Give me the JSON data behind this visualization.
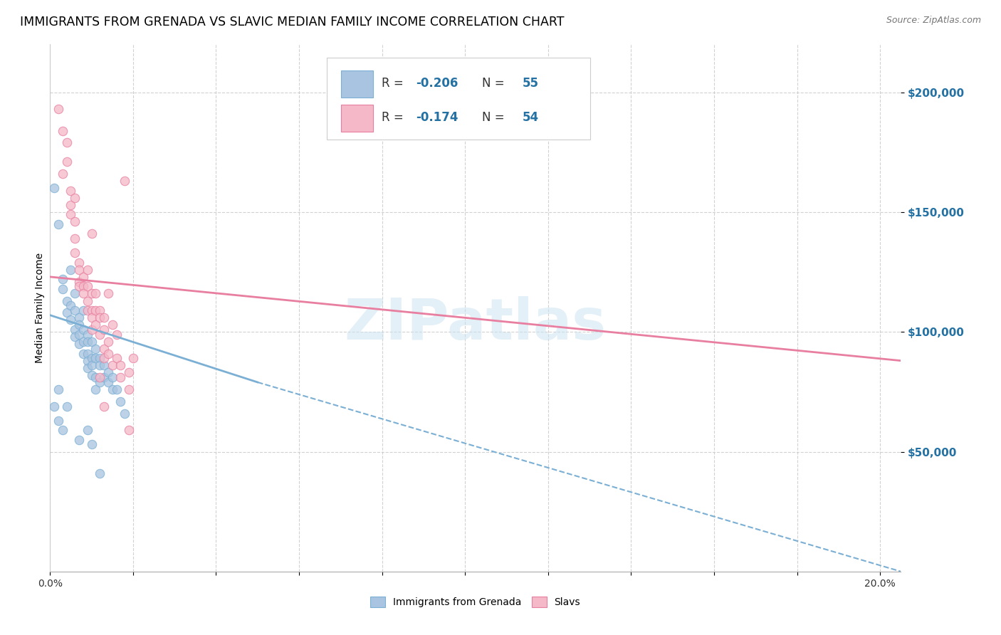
{
  "title": "IMMIGRANTS FROM GRENADA VS SLAVIC MEDIAN FAMILY INCOME CORRELATION CHART",
  "source": "Source: ZipAtlas.com",
  "ylabel": "Median Family Income",
  "ytick_values": [
    50000,
    100000,
    150000,
    200000
  ],
  "ylim": [
    0,
    220000
  ],
  "xlim": [
    0.0,
    0.205
  ],
  "watermark_text": "ZIPatlas",
  "grenada_color": "#a8c4e0",
  "grenada_edge": "#7bafd4",
  "slavs_color": "#f4b8c8",
  "slavs_edge": "#e87fa0",
  "bg_color": "#ffffff",
  "grid_color": "#cccccc",
  "scatter_size": 80,
  "scatter_alpha": 0.75,
  "grenada_line_solid": {
    "x0": 0.0,
    "y0": 107000,
    "x1": 0.05,
    "y1": 79000
  },
  "grenada_line_dashed": {
    "x0": 0.05,
    "y0": 79000,
    "x1": 0.205,
    "y1": 0
  },
  "slavs_line": {
    "x0": 0.0,
    "y0": 123000,
    "x1": 0.205,
    "y1": 88000
  },
  "grenada_scatter": [
    [
      0.001,
      160000
    ],
    [
      0.002,
      145000
    ],
    [
      0.003,
      122000
    ],
    [
      0.003,
      118000
    ],
    [
      0.004,
      113000
    ],
    [
      0.004,
      108000
    ],
    [
      0.005,
      126000
    ],
    [
      0.005,
      111000
    ],
    [
      0.005,
      105000
    ],
    [
      0.006,
      116000
    ],
    [
      0.006,
      109000
    ],
    [
      0.006,
      101000
    ],
    [
      0.006,
      98000
    ],
    [
      0.007,
      106000
    ],
    [
      0.007,
      103000
    ],
    [
      0.007,
      99000
    ],
    [
      0.007,
      95000
    ],
    [
      0.008,
      109000
    ],
    [
      0.008,
      101000
    ],
    [
      0.008,
      96000
    ],
    [
      0.008,
      91000
    ],
    [
      0.009,
      99000
    ],
    [
      0.009,
      96000
    ],
    [
      0.009,
      91000
    ],
    [
      0.009,
      88000
    ],
    [
      0.009,
      85000
    ],
    [
      0.01,
      96000
    ],
    [
      0.01,
      89000
    ],
    [
      0.01,
      86000
    ],
    [
      0.01,
      82000
    ],
    [
      0.011,
      93000
    ],
    [
      0.011,
      89000
    ],
    [
      0.011,
      81000
    ],
    [
      0.011,
      76000
    ],
    [
      0.012,
      89000
    ],
    [
      0.012,
      86000
    ],
    [
      0.012,
      79000
    ],
    [
      0.013,
      86000
    ],
    [
      0.013,
      81000
    ],
    [
      0.014,
      83000
    ],
    [
      0.014,
      79000
    ],
    [
      0.015,
      81000
    ],
    [
      0.015,
      76000
    ],
    [
      0.016,
      76000
    ],
    [
      0.017,
      71000
    ],
    [
      0.018,
      66000
    ],
    [
      0.001,
      69000
    ],
    [
      0.002,
      63000
    ],
    [
      0.003,
      59000
    ],
    [
      0.007,
      55000
    ],
    [
      0.009,
      59000
    ],
    [
      0.01,
      53000
    ],
    [
      0.012,
      41000
    ],
    [
      0.002,
      76000
    ],
    [
      0.004,
      69000
    ]
  ],
  "slavs_scatter": [
    [
      0.002,
      193000
    ],
    [
      0.003,
      184000
    ],
    [
      0.004,
      179000
    ],
    [
      0.004,
      171000
    ],
    [
      0.005,
      159000
    ],
    [
      0.005,
      153000
    ],
    [
      0.005,
      149000
    ],
    [
      0.006,
      146000
    ],
    [
      0.006,
      139000
    ],
    [
      0.006,
      133000
    ],
    [
      0.007,
      129000
    ],
    [
      0.007,
      126000
    ],
    [
      0.007,
      121000
    ],
    [
      0.007,
      119000
    ],
    [
      0.008,
      123000
    ],
    [
      0.008,
      119000
    ],
    [
      0.008,
      116000
    ],
    [
      0.009,
      126000
    ],
    [
      0.009,
      119000
    ],
    [
      0.009,
      113000
    ],
    [
      0.009,
      109000
    ],
    [
      0.01,
      116000
    ],
    [
      0.01,
      109000
    ],
    [
      0.01,
      106000
    ],
    [
      0.01,
      101000
    ],
    [
      0.011,
      116000
    ],
    [
      0.011,
      109000
    ],
    [
      0.011,
      103000
    ],
    [
      0.012,
      109000
    ],
    [
      0.012,
      106000
    ],
    [
      0.012,
      99000
    ],
    [
      0.013,
      106000
    ],
    [
      0.013,
      101000
    ],
    [
      0.013,
      93000
    ],
    [
      0.013,
      89000
    ],
    [
      0.014,
      116000
    ],
    [
      0.014,
      96000
    ],
    [
      0.014,
      91000
    ],
    [
      0.015,
      103000
    ],
    [
      0.015,
      86000
    ],
    [
      0.016,
      99000
    ],
    [
      0.016,
      89000
    ],
    [
      0.017,
      86000
    ],
    [
      0.017,
      81000
    ],
    [
      0.018,
      163000
    ],
    [
      0.019,
      83000
    ],
    [
      0.019,
      59000
    ],
    [
      0.02,
      89000
    ],
    [
      0.003,
      166000
    ],
    [
      0.006,
      156000
    ],
    [
      0.01,
      141000
    ],
    [
      0.012,
      81000
    ],
    [
      0.013,
      69000
    ],
    [
      0.019,
      76000
    ]
  ]
}
